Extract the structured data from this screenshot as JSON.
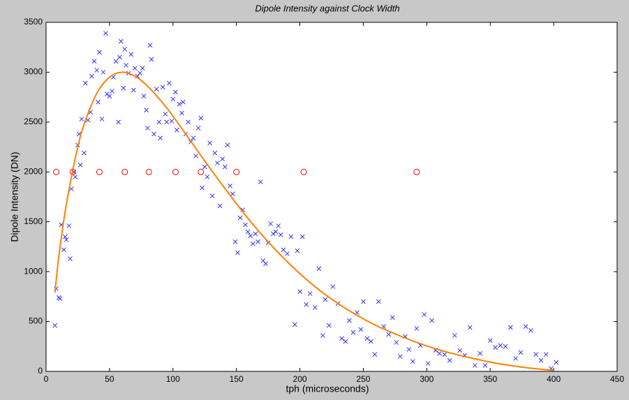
{
  "chart_data": {
    "type": "scatter",
    "title": "Dipole Intensity against Clock Width",
    "xlabel": "tph (microseconds)",
    "ylabel": "Dipole Intensity (DN)",
    "xlim": [
      0,
      450
    ],
    "ylim": [
      0,
      3500
    ],
    "xticks": [
      0,
      50,
      100,
      150,
      200,
      250,
      300,
      350,
      400,
      450
    ],
    "yticks": [
      0,
      500,
      1000,
      1500,
      2000,
      2500,
      3000,
      3500
    ],
    "series": [
      {
        "type": "scatter",
        "marker": "x",
        "color": "#3333ff",
        "x": [
          7,
          8,
          10,
          11,
          12,
          14,
          15,
          16,
          18,
          19,
          20,
          22,
          23,
          25,
          26,
          27,
          28,
          30,
          31,
          33,
          35,
          36,
          38,
          40,
          41,
          42,
          44,
          45,
          47,
          48,
          50,
          52,
          53,
          55,
          57,
          58,
          59,
          61,
          62,
          63,
          65,
          67,
          69,
          70,
          72,
          74,
          76,
          77,
          79,
          80,
          82,
          83,
          85,
          87,
          89,
          90,
          92,
          94,
          95,
          97,
          99,
          100,
          102,
          103,
          105,
          107,
          108,
          110,
          112,
          114,
          116,
          118,
          120,
          122,
          123,
          125,
          127,
          129,
          131,
          133,
          135,
          137,
          139,
          141,
          143,
          145,
          147,
          149,
          151,
          153,
          155,
          157,
          159,
          161,
          163,
          165,
          167,
          169,
          171,
          173,
          175,
          177,
          179,
          181,
          183,
          185,
          187,
          190,
          193,
          196,
          198,
          200,
          202,
          205,
          208,
          212,
          215,
          218,
          220,
          223,
          226,
          230,
          233,
          236,
          239,
          242,
          245,
          248,
          250,
          253,
          256,
          259,
          262,
          266,
          270,
          273,
          276,
          279,
          283,
          286,
          289,
          292,
          295,
          298,
          301,
          304,
          307,
          310,
          314,
          318,
          322,
          326,
          330,
          334,
          338,
          342,
          346,
          350,
          354,
          358,
          362,
          366,
          370,
          374,
          378,
          382,
          386,
          390,
          394,
          398,
          402
        ],
        "values": [
          460,
          830,
          740,
          730,
          1470,
          1220,
          1350,
          1320,
          1460,
          1130,
          1830,
          2000,
          1950,
          2270,
          2380,
          2070,
          2530,
          2190,
          2890,
          2520,
          2600,
          2960,
          3110,
          3020,
          2700,
          3200,
          2530,
          3000,
          3390,
          2780,
          2760,
          2810,
          2950,
          3110,
          2500,
          3150,
          3310,
          2840,
          3230,
          3070,
          2990,
          3180,
          2820,
          3040,
          2960,
          2990,
          3040,
          2760,
          2620,
          2440,
          3270,
          3130,
          2380,
          2830,
          2500,
          2340,
          2850,
          2580,
          2500,
          2890,
          2510,
          2730,
          2800,
          2420,
          2680,
          2590,
          2700,
          2380,
          2500,
          2300,
          2340,
          2160,
          2440,
          2540,
          1840,
          2050,
          1950,
          2290,
          1760,
          2190,
          2090,
          1660,
          2130,
          2050,
          2270,
          1860,
          1780,
          1300,
          1190,
          1540,
          1620,
          1470,
          1400,
          1360,
          1280,
          1380,
          1300,
          1900,
          1110,
          1080,
          1290,
          1480,
          1380,
          1400,
          1460,
          1370,
          1220,
          1180,
          1350,
          470,
          1210,
          800,
          1350,
          670,
          780,
          640,
          1030,
          360,
          720,
          460,
          850,
          680,
          330,
          300,
          510,
          390,
          590,
          420,
          700,
          330,
          300,
          170,
          700,
          450,
          370,
          540,
          290,
          150,
          350,
          220,
          100,
          430,
          260,
          570,
          80,
          510,
          210,
          180,
          170,
          110,
          360,
          210,
          160,
          440,
          60,
          180,
          60,
          310,
          240,
          260,
          250,
          440,
          130,
          190,
          450,
          410,
          170,
          110,
          170,
          30,
          90
        ]
      },
      {
        "type": "line",
        "color": "#ff8000",
        "x": [
          7,
          10,
          15,
          20,
          25,
          30,
          40,
          50,
          60,
          70,
          80,
          90,
          100,
          120,
          140,
          160,
          180,
          200,
          220,
          240,
          260,
          280,
          300,
          320,
          340,
          360,
          380,
          400
        ],
        "values": [
          790,
          1150,
          1600,
          1950,
          2250,
          2480,
          2790,
          2950,
          3000,
          2960,
          2860,
          2720,
          2560,
          2200,
          1850,
          1520,
          1230,
          980,
          770,
          600,
          460,
          350,
          255,
          180,
          120,
          70,
          35,
          10
        ]
      },
      {
        "type": "scatter",
        "marker": "o",
        "color": "#ff0000",
        "x": [
          8,
          21,
          42,
          62,
          81,
          102,
          122,
          150,
          203,
          292
        ],
        "values": [
          2000,
          2000,
          2000,
          2000,
          2000,
          2000,
          2000,
          2000,
          2000,
          2000
        ]
      }
    ]
  }
}
